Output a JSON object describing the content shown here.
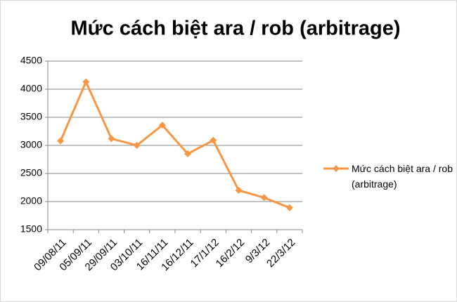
{
  "chart_data": {
    "type": "line",
    "title": "Mức cách biệt ara / rob (arbitrage)",
    "categories": [
      "09/08/11",
      "05/09/11",
      "29/09/11",
      "03/10/11",
      "16/11/11",
      "16/12/11",
      "17/1/12",
      "16/2/12",
      "9/3/12",
      "22/3/12"
    ],
    "series": [
      {
        "name": "Mức cách biệt ara / rob (arbitrage)",
        "color": "#f79646",
        "values": [
          3080,
          4130,
          3120,
          3000,
          3360,
          2850,
          3090,
          2200,
          2070,
          1890
        ]
      }
    ],
    "ylim": [
      1500,
      4500
    ],
    "yticks": [
      1500,
      2000,
      2500,
      3000,
      3500,
      4000,
      4500
    ],
    "grid": true,
    "legend": "right"
  }
}
